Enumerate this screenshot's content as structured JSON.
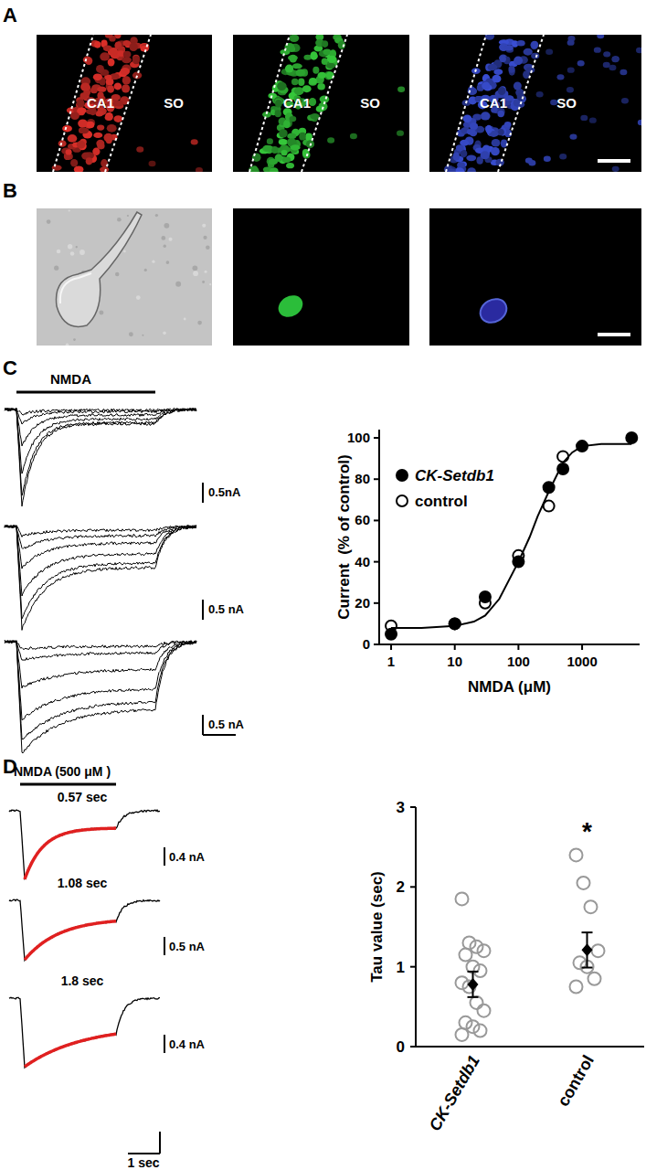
{
  "figure": {
    "panel_labels": [
      "A",
      "B",
      "C",
      "D"
    ],
    "panel_a": {
      "regions": [
        "CA1",
        "SO"
      ]
    },
    "panel_c_traces": {
      "stimulus": "NMDA",
      "scale_labels": [
        "0.5nA",
        "0.5 nA",
        "0.5 nA"
      ]
    },
    "panel_d_traces": {
      "stimulus": "NMDA (500 μM )",
      "fits": [
        {
          "tau": 0.57,
          "label": "0.57 sec",
          "scale_label": "0.4 nA"
        },
        {
          "tau": 1.08,
          "label": "1.08 sec",
          "scale_label": "0.5 nA"
        },
        {
          "tau": 1.8,
          "label": "1.8 sec",
          "scale_label": "0.4 nA"
        }
      ],
      "time_scale": "1 sec"
    }
  },
  "chart_data": [
    {
      "type": "scatter",
      "x_label": "NMDA (μM)",
      "y_label": "Current  (% of control)",
      "log": "x",
      "xlim": [
        0.65,
        8000
      ],
      "ylim": [
        0,
        104
      ],
      "xticks": [
        1,
        10,
        100,
        1000
      ],
      "yticks": [
        0,
        20,
        40,
        60,
        80,
        100
      ],
      "legend": "upper left",
      "series": [
        {
          "name": "CK-Setdb1",
          "color": "#000000",
          "marker": "filled-circle",
          "x": [
            1,
            10,
            30,
            100,
            300,
            500,
            1000,
            6000
          ],
          "values": [
            5,
            10,
            23,
            40,
            76,
            85,
            96,
            100
          ]
        },
        {
          "name": "control",
          "color": "#000000",
          "marker": "open-circle",
          "x": [
            1,
            10,
            30,
            100,
            300,
            500
          ],
          "values": [
            9,
            10,
            20,
            43,
            67,
            91
          ]
        },
        {
          "type": "line",
          "color": "#000000",
          "x": [
            1,
            3,
            10,
            20,
            30,
            50,
            100,
            150,
            200,
            300,
            500,
            700,
            1000,
            2000,
            6000
          ],
          "values": [
            8,
            8,
            9,
            11,
            14,
            22,
            40,
            52,
            62,
            74,
            88,
            93,
            96,
            97,
            97
          ]
        }
      ]
    },
    {
      "type": "scatter",
      "y_label": "Tau value (sec)",
      "categories": [
        "CK-Setdb1",
        "control"
      ],
      "ylim": [
        0,
        3
      ],
      "yticks": [
        0,
        1,
        2,
        3
      ],
      "color": "#999999",
      "marker": "open-circle",
      "points": [
        [
          1.85,
          1.3,
          1.25,
          1.2,
          1.15,
          1.0,
          0.95,
          0.8,
          0.75,
          0.55,
          0.45,
          0.3,
          0.25,
          0.2,
          0.15
        ],
        [
          2.4,
          2.05,
          1.75,
          1.2,
          1.05,
          1.0,
          0.85,
          0.75
        ]
      ],
      "mean": [
        0.78,
        1.21
      ],
      "error": [
        0.16,
        0.22
      ],
      "annotations": [
        {
          "text": "*",
          "category": 1,
          "y": 2.75
        }
      ]
    }
  ]
}
